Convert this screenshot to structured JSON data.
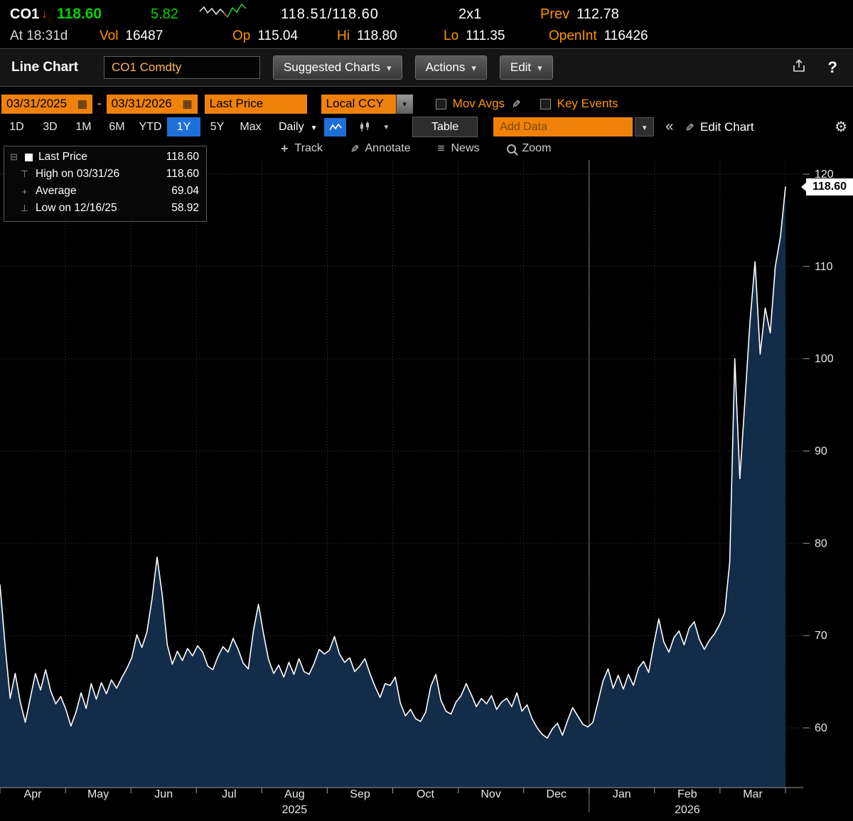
{
  "ticker": {
    "symbol": "CO1",
    "down_arrow": "↓",
    "last": "118.60",
    "change": "5.82",
    "bid_ask": "118.51/118.60",
    "size": "2x1",
    "prev_label": "Prev",
    "prev_value": "112.78",
    "at_text": "At 18:31d",
    "vol_label": "Vol",
    "vol_value": "16487",
    "op_label": "Op",
    "op_value": "115.04",
    "hi_label": "Hi",
    "hi_value": "118.80",
    "lo_label": "Lo",
    "lo_value": "111.35",
    "openint_label": "OpenInt",
    "openint_value": "116426"
  },
  "toolbar": {
    "title": "Line Chart",
    "security": "CO1 Comdty",
    "suggested_charts_label": "Suggested Charts",
    "actions_label": "Actions",
    "edit_label": "Edit"
  },
  "controls": {
    "date_from": "03/31/2025",
    "date_separator": "-",
    "date_to": "03/31/2026",
    "price_field": "Last Price",
    "currency": "Local CCY",
    "mov_avgs_label": "Mov Avgs",
    "key_events_label": "Key Events",
    "periods": [
      "1D",
      "3D",
      "1M",
      "6M",
      "YTD",
      "1Y",
      "5Y",
      "Max"
    ],
    "selected_period": "1Y",
    "frequency": "Daily",
    "table_label": "Table",
    "add_data_placeholder": "Add Data",
    "edit_chart_label": "Edit Chart"
  },
  "tools": {
    "track": "Track",
    "annotate": "Annotate",
    "news": "News",
    "zoom": "Zoom"
  },
  "legend": {
    "rows": [
      {
        "label": "Last Price",
        "value": "118.60"
      },
      {
        "label": "High on 03/31/26",
        "value": "118.60"
      },
      {
        "label": "Average",
        "value": "69.04"
      },
      {
        "label": "Low on 12/16/25",
        "value": "58.92"
      }
    ]
  },
  "badge": {
    "value": "118.60"
  },
  "chart_data": {
    "type": "line",
    "series_name": "Last Price",
    "frequency": "Daily",
    "date_range": "03/31/2025 - 03/31/2026",
    "x_labels": [
      "Apr",
      "May",
      "Jun",
      "Jul",
      "Aug",
      "Sep",
      "Oct",
      "Nov",
      "Dec",
      "Jan",
      "Feb",
      "Mar"
    ],
    "year_labels": [
      {
        "text": "2025",
        "month_index": 4
      },
      {
        "text": "2026",
        "month_index": 10
      }
    ],
    "year_separator_month": 9,
    "y_ticks": [
      60,
      70,
      80,
      90,
      100,
      110,
      120
    ],
    "ylim": [
      53.5,
      121.5
    ],
    "last_price": 118.6,
    "high": {
      "date": "03/31/26",
      "value": 118.6
    },
    "average": 69.04,
    "low": {
      "date": "12/16/25",
      "value": 58.92
    },
    "values": [
      75.5,
      69.0,
      63.2,
      65.9,
      62.8,
      60.6,
      63.3,
      65.9,
      64.1,
      66.3,
      64.0,
      62.6,
      63.4,
      62.0,
      60.2,
      61.7,
      63.8,
      62.1,
      64.8,
      63.1,
      64.9,
      63.7,
      65.2,
      64.3,
      65.4,
      66.4,
      67.6,
      70.1,
      68.7,
      70.4,
      74.0,
      78.5,
      74.5,
      69.0,
      66.9,
      68.3,
      67.3,
      68.6,
      67.8,
      68.9,
      68.2,
      66.7,
      66.3,
      67.7,
      68.8,
      68.2,
      69.7,
      68.5,
      67.0,
      66.4,
      70.5,
      73.4,
      70.2,
      67.4,
      65.9,
      66.8,
      65.5,
      67.1,
      65.8,
      67.5,
      66.1,
      65.8,
      67.0,
      68.5,
      68.0,
      68.4,
      69.9,
      68.0,
      67.1,
      67.6,
      66.1,
      66.7,
      67.5,
      65.9,
      64.5,
      63.3,
      64.8,
      64.6,
      65.5,
      62.7,
      61.3,
      62.0,
      61.0,
      60.7,
      61.7,
      64.5,
      65.8,
      63.0,
      61.8,
      61.5,
      62.8,
      63.5,
      64.8,
      63.6,
      62.3,
      63.2,
      62.6,
      63.5,
      62.0,
      62.8,
      63.2,
      62.3,
      63.8,
      61.8,
      62.5,
      61.0,
      60.0,
      59.3,
      58.9,
      59.9,
      60.5,
      59.2,
      60.8,
      62.2,
      61.3,
      60.4,
      60.1,
      60.6,
      62.8,
      65.1,
      66.4,
      64.3,
      65.7,
      64.2,
      65.8,
      64.6,
      66.5,
      67.2,
      66.0,
      69.0,
      71.8,
      69.3,
      68.2,
      69.8,
      70.5,
      69.0,
      70.8,
      71.5,
      69.6,
      68.5,
      69.5,
      70.2,
      71.2,
      72.5,
      78.0,
      100.0,
      87.0,
      95.5,
      104.0,
      110.5,
      100.5,
      105.5,
      102.8,
      110.0,
      113.2,
      118.6
    ]
  }
}
